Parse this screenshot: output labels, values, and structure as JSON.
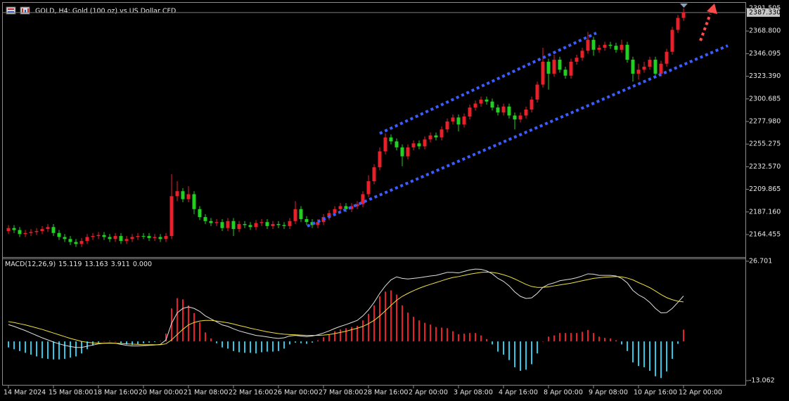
{
  "chart_data": [
    {
      "type": "candlestick",
      "title": "GOLD, H4:  Gold (100 oz) vs US Dollar CFD",
      "categories": [
        "14 Mar 2024",
        null,
        null,
        null,
        null,
        null,
        null,
        null,
        "15 Mar 08:00",
        null,
        null,
        null,
        null,
        null,
        null,
        null,
        "18 Mar 16:00",
        null,
        null,
        null,
        null,
        null,
        null,
        null,
        "20 Mar 00:00",
        null,
        null,
        null,
        null,
        null,
        null,
        null,
        "21 Mar 08:00",
        null,
        null,
        null,
        null,
        null,
        null,
        null,
        "22 Mar 16:00",
        null,
        null,
        null,
        null,
        null,
        null,
        null,
        "26 Mar 00:00",
        null,
        null,
        null,
        null,
        null,
        null,
        null,
        "27 Mar 08:00",
        null,
        null,
        null,
        null,
        null,
        null,
        null,
        "28 Mar 16:00",
        null,
        null,
        null,
        null,
        null,
        null,
        null,
        "2 Apr 00:00",
        null,
        null,
        null,
        null,
        null,
        null,
        null,
        "3 Apr 08:00",
        null,
        null,
        null,
        null,
        null,
        null,
        null,
        "4 Apr 16:00",
        null,
        null,
        null,
        null,
        null,
        null,
        null,
        "8 Apr 00:00",
        null,
        null,
        null,
        null,
        null,
        null,
        null,
        "9 Apr 08:00",
        null,
        null,
        null,
        null,
        null,
        null,
        null,
        "10 Apr 16:00",
        null,
        null,
        null,
        null,
        null,
        null,
        null,
        "12 Apr 00:00"
      ],
      "open": [
        2168,
        2171,
        2169,
        2165,
        2166,
        2167,
        2168,
        2170,
        2172,
        2166,
        2162,
        2160,
        2157,
        2155,
        2158,
        2162,
        2163,
        2164,
        2162,
        2160,
        2163,
        2158,
        2160,
        2162,
        2163,
        2163,
        2161,
        2162,
        2160,
        2163,
        2203,
        2208,
        2200,
        2205,
        2190,
        2182,
        2178,
        2176,
        2177,
        2171,
        2178,
        2170,
        2175,
        2174,
        2172,
        2176,
        2177,
        2173,
        2175,
        2174,
        2173,
        2178,
        2190,
        2180,
        2177,
        2174,
        2177,
        2182,
        2186,
        2190,
        2193,
        2190,
        2193,
        2195,
        2205,
        2218,
        2232,
        2248,
        2262,
        2258,
        2252,
        2243,
        2252,
        2256,
        2253,
        2260,
        2264,
        2262,
        2270,
        2278,
        2282,
        2275,
        2283,
        2292,
        2296,
        2300,
        2298,
        2292,
        2287,
        2293,
        2284,
        2280,
        2284,
        2290,
        2300,
        2315,
        2338,
        2326,
        2340,
        2330,
        2324,
        2338,
        2342,
        2349,
        2360,
        2350,
        2352,
        2355,
        2354,
        2350,
        2355,
        2340,
        2326,
        2330,
        2333,
        2340,
        2326,
        2336,
        2348,
        2370,
        2382
      ],
      "high": [
        2174,
        2174,
        2172,
        2169,
        2170,
        2171,
        2173,
        2175,
        2175,
        2169,
        2165,
        2163,
        2160,
        2161,
        2165,
        2166,
        2167,
        2167,
        2165,
        2166,
        2166,
        2163,
        2165,
        2166,
        2166,
        2166,
        2165,
        2165,
        2166,
        2225,
        2218,
        2211,
        2213,
        2208,
        2193,
        2185,
        2181,
        2180,
        2180,
        2181,
        2181,
        2178,
        2178,
        2177,
        2179,
        2180,
        2180,
        2178,
        2178,
        2177,
        2181,
        2198,
        2193,
        2183,
        2180,
        2180,
        2185,
        2189,
        2193,
        2196,
        2196,
        2196,
        2198,
        2208,
        2224,
        2235,
        2252,
        2266,
        2265,
        2261,
        2255,
        2255,
        2259,
        2259,
        2263,
        2267,
        2267,
        2273,
        2281,
        2285,
        2285,
        2286,
        2295,
        2299,
        2303,
        2303,
        2301,
        2295,
        2296,
        2296,
        2287,
        2287,
        2293,
        2303,
        2318,
        2352,
        2341,
        2345,
        2343,
        2333,
        2341,
        2345,
        2352,
        2368,
        2363,
        2355,
        2358,
        2358,
        2357,
        2360,
        2358,
        2343,
        2336,
        2338,
        2343,
        2343,
        2339,
        2351,
        2373,
        2385,
        2391.5
      ],
      "low": [
        2165,
        2166,
        2162,
        2162,
        2163,
        2164,
        2165,
        2167,
        2163,
        2159,
        2157,
        2154,
        2152,
        2152,
        2155,
        2159,
        2160,
        2159,
        2157,
        2157,
        2155,
        2155,
        2157,
        2159,
        2160,
        2158,
        2158,
        2157,
        2157,
        2160,
        2198,
        2197,
        2197,
        2185,
        2179,
        2175,
        2173,
        2173,
        2168,
        2168,
        2163,
        2167,
        2171,
        2169,
        2169,
        2173,
        2170,
        2170,
        2171,
        2170,
        2170,
        2175,
        2177,
        2174,
        2171,
        2171,
        2174,
        2179,
        2183,
        2187,
        2187,
        2187,
        2190,
        2192,
        2202,
        2215,
        2229,
        2245,
        2255,
        2249,
        2233,
        2240,
        2249,
        2250,
        2250,
        2257,
        2259,
        2259,
        2267,
        2275,
        2268,
        2272,
        2280,
        2289,
        2293,
        2295,
        2289,
        2284,
        2284,
        2281,
        2270,
        2277,
        2281,
        2287,
        2297,
        2312,
        2310,
        2323,
        2327,
        2321,
        2321,
        2335,
        2339,
        2346,
        2344,
        2347,
        2349,
        2351,
        2347,
        2347,
        2337,
        2318,
        2320,
        2327,
        2330,
        2323,
        2323,
        2333,
        2345,
        2367,
        2379
      ],
      "close": [
        2171,
        2169,
        2165,
        2166,
        2167,
        2168,
        2170,
        2172,
        2166,
        2162,
        2160,
        2157,
        2155,
        2158,
        2162,
        2163,
        2164,
        2162,
        2160,
        2163,
        2158,
        2160,
        2162,
        2163,
        2163,
        2161,
        2162,
        2160,
        2163,
        2203,
        2208,
        2200,
        2205,
        2190,
        2182,
        2178,
        2176,
        2177,
        2171,
        2178,
        2170,
        2175,
        2174,
        2172,
        2176,
        2177,
        2173,
        2175,
        2174,
        2173,
        2178,
        2190,
        2180,
        2177,
        2174,
        2177,
        2182,
        2186,
        2190,
        2193,
        2190,
        2193,
        2195,
        2205,
        2218,
        2232,
        2248,
        2262,
        2258,
        2252,
        2243,
        2252,
        2256,
        2253,
        2260,
        2264,
        2262,
        2270,
        2278,
        2282,
        2275,
        2283,
        2292,
        2296,
        2300,
        2298,
        2292,
        2287,
        2293,
        2284,
        2280,
        2284,
        2290,
        2300,
        2315,
        2338,
        2326,
        2340,
        2330,
        2324,
        2338,
        2342,
        2349,
        2360,
        2350,
        2352,
        2355,
        2354,
        2350,
        2355,
        2340,
        2326,
        2330,
        2333,
        2340,
        2326,
        2336,
        2348,
        2370,
        2382,
        2387.33
      ],
      "up_color": "#e8202a",
      "down_color": "#22d022",
      "ylim": [
        2142.6,
        2397.14
      ],
      "yticks": [
        2164.455,
        {
          "value": 2187.16,
          "label": "2187.160"
        },
        2209.865,
        {
          "value": 2232.57,
          "label": "2232.570"
        },
        2255.275,
        {
          "value": 2277.98,
          "label": "2277.980"
        },
        2300.685,
        {
          "value": 2323.39,
          "label": "2323.390"
        },
        2346.095,
        {
          "value": 2368.8,
          "label": "2368.800"
        },
        2391.505
      ],
      "last_price": {
        "value": 2387.33,
        "label": "2387.330"
      }
    },
    {
      "type": "macd",
      "title": "MACD(12,26,9)",
      "readout": [
        15.119,
        13.163,
        3.911,
        {
          "value": 0,
          "label": "0.000"
        }
      ],
      "histogram": [
        -2.0,
        -2.6,
        -3.2,
        -3.8,
        -4.4,
        -5.0,
        -5.6,
        -5.8,
        -6.0,
        -6.0,
        -5.8,
        -5.4,
        -5.0,
        -4.0,
        -2.6,
        -1.4,
        -0.4,
        0,
        0.2,
        0,
        -0.6,
        -1.0,
        -1.2,
        -1.0,
        -0.6,
        -0.4,
        -0.2,
        0.2,
        2.6,
        11.0,
        14.4,
        14.0,
        12.0,
        9.4,
        6.4,
        3.0,
        1.0,
        -0.6,
        -2.0,
        -2.4,
        -3.2,
        -3.6,
        -3.8,
        -3.8,
        -4.0,
        -3.6,
        -3.4,
        -3.4,
        -3.2,
        -2.4,
        -1.0,
        -0.4,
        -0.6,
        -0.8,
        -0.4,
        0.4,
        1.4,
        2.4,
        3.4,
        4.0,
        4.4,
        4.8,
        5.2,
        7.0,
        9.2,
        12.0,
        15.0,
        16.6,
        17.0,
        15.6,
        12.0,
        9.6,
        8.2,
        7.0,
        6.2,
        5.6,
        4.8,
        4.6,
        4.4,
        3.4,
        2.4,
        2.6,
        2.8,
        2.8,
        2.0,
        0.8,
        -1.0,
        -3.4,
        -4.4,
        -6.2,
        -8.6,
        -9.8,
        -9.4,
        -7.6,
        -4.0,
        0,
        1.6,
        2.0,
        2.8,
        2.8,
        2.8,
        2.8,
        3.2,
        3.8,
        2.8,
        1.6,
        1.2,
        1.0,
        0.4,
        -1.0,
        -3.2,
        -7.0,
        -8.2,
        -8.6,
        -9.8,
        -11.6,
        -12.2,
        -10.0,
        -5.8,
        -0.8,
        3.911
      ],
      "macd": [
        5.6,
        5.0,
        4.3,
        3.6,
        2.8,
        2.0,
        1.2,
        0.5,
        -0.2,
        -0.8,
        -1.3,
        -1.7,
        -2.0,
        -2.0,
        -1.6,
        -1.2,
        -0.8,
        -0.6,
        -0.5,
        -0.6,
        -1.0,
        -1.3,
        -1.5,
        -1.5,
        -1.4,
        -1.3,
        -1.2,
        -1.0,
        0.5,
        6.0,
        9.5,
        11.0,
        11.5,
        11.0,
        10.0,
        8.5,
        7.5,
        6.5,
        5.5,
        5.0,
        4.2,
        3.5,
        3.0,
        2.5,
        2.0,
        1.8,
        1.5,
        1.2,
        1.0,
        1.2,
        1.8,
        2.0,
        1.8,
        1.6,
        1.8,
        2.2,
        2.8,
        3.5,
        4.3,
        5.0,
        5.6,
        6.3,
        7.0,
        8.5,
        10.5,
        13.0,
        16.0,
        18.5,
        20.5,
        21.5,
        21.0,
        20.8,
        21.0,
        21.2,
        21.5,
        21.8,
        22.0,
        22.5,
        23.0,
        23.0,
        22.8,
        23.3,
        23.8,
        24.1,
        24.0,
        23.5,
        22.5,
        21.0,
        20.0,
        18.5,
        16.5,
        15.0,
        14.3,
        14.5,
        16.0,
        18.0,
        19.0,
        19.5,
        20.2,
        20.5,
        20.8,
        21.2,
        21.8,
        22.5,
        22.4,
        22.0,
        22.0,
        22.0,
        21.8,
        21.0,
        19.5,
        17.0,
        15.5,
        14.5,
        13.0,
        11.0,
        9.5,
        9.6,
        11.0,
        13.0,
        15.119
      ],
      "signal": [
        6.6,
        6.3,
        5.9,
        5.5,
        5.0,
        4.5,
        4.0,
        3.4,
        2.8,
        2.2,
        1.6,
        1.0,
        0.5,
        0,
        -0.3,
        -0.5,
        -0.6,
        -0.6,
        -0.6,
        -0.6,
        -0.7,
        -0.8,
        -0.9,
        -1.0,
        -1.1,
        -1.1,
        -1.1,
        -1.1,
        -0.8,
        0.5,
        2.3,
        4.0,
        5.5,
        6.3,
        6.8,
        7.0,
        7.0,
        6.8,
        6.5,
        6.2,
        5.8,
        5.3,
        4.9,
        4.4,
        4.0,
        3.6,
        3.2,
        2.9,
        2.6,
        2.4,
        2.3,
        2.2,
        2.1,
        2.0,
        2.0,
        2.0,
        2.1,
        2.3,
        2.6,
        3.0,
        3.4,
        3.9,
        4.4,
        5.0,
        5.9,
        7.0,
        8.5,
        10.2,
        12.0,
        13.7,
        15.0,
        16.0,
        16.9,
        17.7,
        18.4,
        19.0,
        19.6,
        20.2,
        20.8,
        21.3,
        21.6,
        22.0,
        22.4,
        22.7,
        23.0,
        23.1,
        23.0,
        22.7,
        22.2,
        21.6,
        20.8,
        19.9,
        19.0,
        18.3,
        18.0,
        18.0,
        18.2,
        18.5,
        18.8,
        19.1,
        19.4,
        19.8,
        20.2,
        20.6,
        21.0,
        21.2,
        21.4,
        21.5,
        21.6,
        21.5,
        21.1,
        20.5,
        19.6,
        18.8,
        17.9,
        16.8,
        15.6,
        14.6,
        13.9,
        13.4,
        13.163
      ],
      "positive_color": "#e8202a",
      "negative_color": "#2ec8e6",
      "macd_color": "#e0e0e0",
      "signal_color": "#f0e040",
      "ylim": [
        -13.062,
        26.701
      ],
      "yticks": [
        26.701,
        -13.062
      ]
    }
  ]
}
